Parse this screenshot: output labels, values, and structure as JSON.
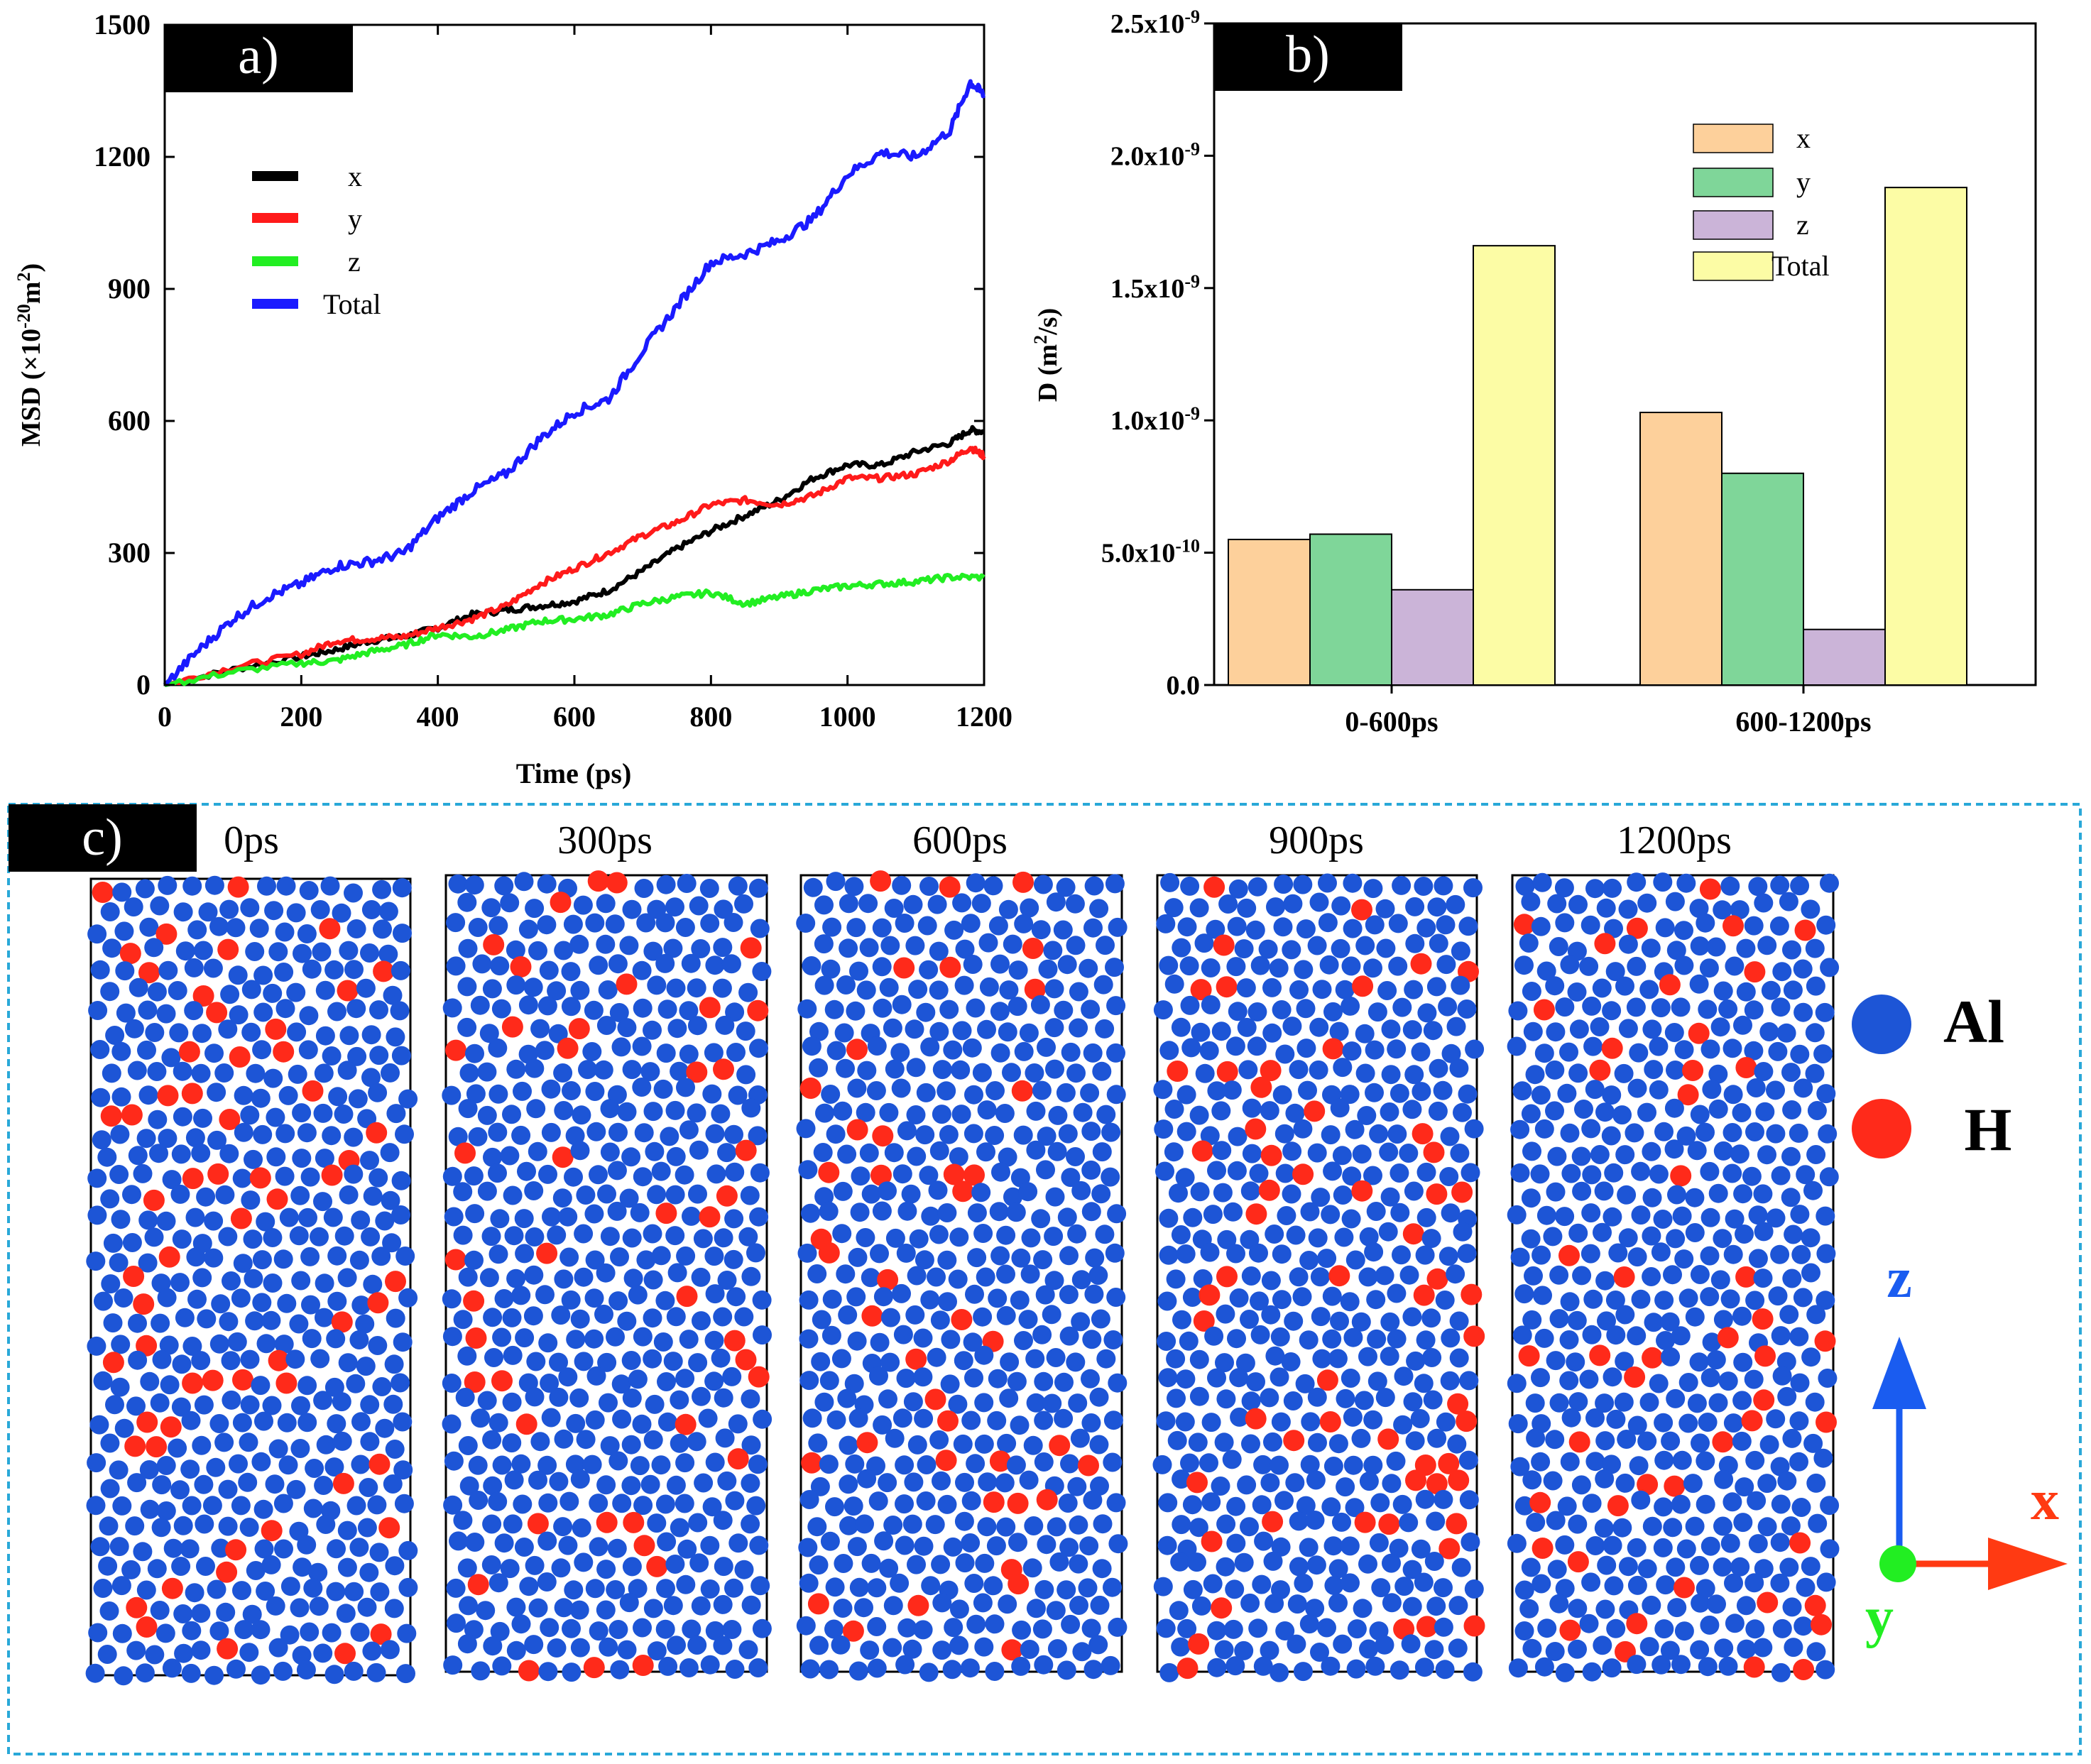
{
  "colors": {
    "x": "#000000",
    "y": "#ff1a1a",
    "z": "#22ee22",
    "total": "#1a1aff",
    "bar_x": "#fdd09b",
    "bar_y": "#7fd699",
    "bar_z": "#cbb4d8",
    "bar_total": "#fcfca5",
    "atom_al": "#1d55d6",
    "atom_h": "#ff2a1a",
    "border_c": "#29a8d8",
    "axis_z": "#1a5cf0",
    "axis_x": "#ff3a12",
    "axis_y": "#22ee22"
  },
  "chart_data": [
    {
      "id": "a",
      "type": "line",
      "panel_label": "a)",
      "xlabel": "Time (ps)",
      "ylabel_main": "MSD (×10",
      "ylabel_sup1": "-20",
      "ylabel_mid": "m",
      "ylabel_sup2": "2",
      "ylabel_end": ")",
      "xlim": [
        0,
        1200
      ],
      "ylim": [
        0,
        1500
      ],
      "xticks": [
        "0",
        "200",
        "400",
        "600",
        "800",
        "1000",
        "1200"
      ],
      "xtick_values": [
        0,
        200,
        400,
        600,
        800,
        1000,
        1200
      ],
      "yticks": [
        "0",
        "300",
        "600",
        "900",
        "1200",
        "1500"
      ],
      "ytick_values": [
        0,
        300,
        600,
        900,
        1200,
        1500
      ],
      "legend": [
        "x",
        "y",
        "z",
        "Total"
      ],
      "legend_position": "top-left",
      "series": [
        {
          "name": "x",
          "color_key": "x",
          "x": [
            0,
            100,
            200,
            250,
            300,
            350,
            400,
            450,
            500,
            550,
            600,
            650,
            700,
            750,
            800,
            850,
            900,
            950,
            1000,
            1050,
            1100,
            1150,
            1180,
            1200
          ],
          "y": [
            0,
            35,
            65,
            80,
            100,
            110,
            130,
            160,
            170,
            180,
            190,
            215,
            260,
            310,
            350,
            385,
            420,
            470,
            500,
            500,
            530,
            550,
            580,
            575
          ]
        },
        {
          "name": "y",
          "color_key": "y",
          "x": [
            0,
            100,
            200,
            250,
            300,
            350,
            400,
            450,
            500,
            550,
            600,
            650,
            700,
            750,
            800,
            850,
            900,
            950,
            1000,
            1050,
            1100,
            1150,
            1180,
            1200
          ],
          "y": [
            0,
            40,
            70,
            100,
            105,
            110,
            130,
            150,
            180,
            230,
            265,
            300,
            340,
            370,
            410,
            420,
            410,
            430,
            470,
            470,
            480,
            510,
            540,
            520
          ]
        },
        {
          "name": "z",
          "color_key": "z",
          "x": [
            0,
            100,
            200,
            250,
            300,
            350,
            400,
            450,
            500,
            550,
            600,
            650,
            700,
            750,
            800,
            850,
            900,
            950,
            1000,
            1050,
            1100,
            1150,
            1200
          ],
          "y": [
            0,
            30,
            50,
            55,
            75,
            90,
            115,
            110,
            125,
            145,
            150,
            160,
            185,
            200,
            210,
            185,
            200,
            215,
            225,
            230,
            235,
            245,
            245
          ]
        },
        {
          "name": "Total",
          "color_key": "total",
          "x": [
            0,
            50,
            100,
            150,
            200,
            250,
            300,
            350,
            400,
            450,
            500,
            550,
            600,
            650,
            700,
            750,
            800,
            850,
            900,
            950,
            1000,
            1050,
            1100,
            1150,
            1180,
            1200
          ],
          "y": [
            0,
            80,
            150,
            200,
            230,
            270,
            280,
            300,
            380,
            440,
            480,
            560,
            620,
            650,
            760,
            860,
            960,
            980,
            1010,
            1060,
            1160,
            1210,
            1200,
            1260,
            1370,
            1340
          ]
        }
      ]
    },
    {
      "id": "b",
      "type": "bar",
      "panel_label": "b)",
      "xlabel": "",
      "ylabel_main": "D (m",
      "ylabel_sup": "2",
      "ylabel_end": "/s)",
      "ylim": [
        0,
        2.5e-09
      ],
      "ytick_values": [
        0,
        5e-10,
        1e-09,
        1.5e-09,
        2e-09,
        2.5e-09
      ],
      "yticks": [
        {
          "base": "0.0",
          "exp": ""
        },
        {
          "base": "5.0x10",
          "exp": "-10"
        },
        {
          "base": "1.0x10",
          "exp": "-9"
        },
        {
          "base": "1.5x10",
          "exp": "-9"
        },
        {
          "base": "2.0x10",
          "exp": "-9"
        },
        {
          "base": "2.5x10",
          "exp": "-9"
        }
      ],
      "categories": [
        "0-600ps",
        "600-1200ps"
      ],
      "legend": [
        "x",
        "y",
        "z",
        "Total"
      ],
      "legend_position": "top-right",
      "series": [
        {
          "name": "x",
          "color_key": "bar_x",
          "values": [
            5.5e-10,
            1.03e-09
          ]
        },
        {
          "name": "y",
          "color_key": "bar_y",
          "values": [
            5.7e-10,
            8e-10
          ]
        },
        {
          "name": "z",
          "color_key": "bar_z",
          "values": [
            3.6e-10,
            2.1e-10
          ]
        },
        {
          "name": "Total",
          "color_key": "bar_total",
          "values": [
            1.66e-09,
            1.88e-09
          ]
        }
      ]
    }
  ],
  "panel_c": {
    "panel_label": "c)",
    "snapshots": [
      "0ps",
      "300ps",
      "600ps",
      "900ps",
      "1200ps"
    ],
    "legend": {
      "al": "Al",
      "h": "H"
    },
    "axes": {
      "z": "z",
      "x": "x",
      "y": "y"
    }
  }
}
